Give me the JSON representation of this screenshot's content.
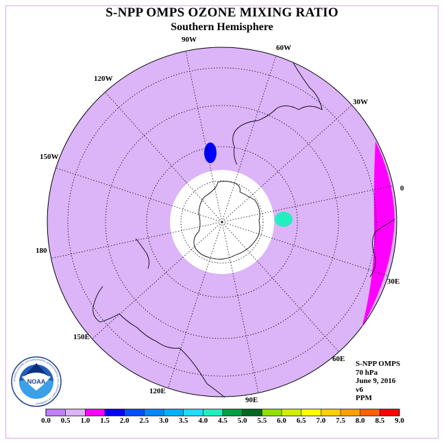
{
  "title": "S-NPP OMPS OZONE MIXING RATIO",
  "subtitle": "Southern Hemisphere",
  "longitude_labels": [
    "90W",
    "60W",
    "30W",
    "0",
    "30E",
    "60E",
    "90E",
    "120E",
    "150E",
    "180",
    "150W",
    "120W"
  ],
  "info": {
    "instrument": "S-NPP OMPS",
    "level": "70 hPa",
    "date": "June 9, 2016",
    "version": "v6",
    "units": "PPM"
  },
  "logo": {
    "text": "NOAA",
    "ring_text": "NATIONAL OCEANIC AND ATMOSPHERIC ADMINISTRATION • U.S. DEPARTMENT OF COMMERCE"
  },
  "chart_data": {
    "type": "heatmap",
    "projection": "south polar stereographic",
    "colorbar": {
      "ticks": [
        "0.0",
        "0.5",
        "1.0",
        "1.5",
        "2.0",
        "2.5",
        "3.0",
        "3.5",
        "4.0",
        "4.5",
        "5.0",
        "5.5",
        "6.0",
        "6.5",
        "7.0",
        "7.5",
        "8.0",
        "8.5",
        "9.0"
      ],
      "colors": [
        "#c080f8",
        "#dcb4f8",
        "#ff00ff",
        "#0000ff",
        "#0050ff",
        "#0088ff",
        "#00b0ff",
        "#20dcff",
        "#20f0c0",
        "#00a040",
        "#006820",
        "#90e000",
        "#d0f000",
        "#ffff00",
        "#ffd000",
        "#ffa000",
        "#ff6000",
        "#ff0000",
        "#905030"
      ]
    },
    "contour_bands": [
      {
        "range": [
          1.0,
          1.5
        ],
        "color": "#ff00ff"
      },
      {
        "range": [
          1.5,
          2.0
        ],
        "color": "#0000ff"
      },
      {
        "range": [
          2.0,
          2.5
        ],
        "color": "#0050ff"
      },
      {
        "range": [
          2.5,
          3.0
        ],
        "color": "#0088ff"
      },
      {
        "range": [
          3.0,
          3.5
        ],
        "color": "#00b0ff"
      },
      {
        "range": [
          3.5,
          4.0
        ],
        "color": "#20dcff"
      }
    ],
    "background_value_color": "#dcb4f8",
    "polar_cap": "no data (white)"
  }
}
